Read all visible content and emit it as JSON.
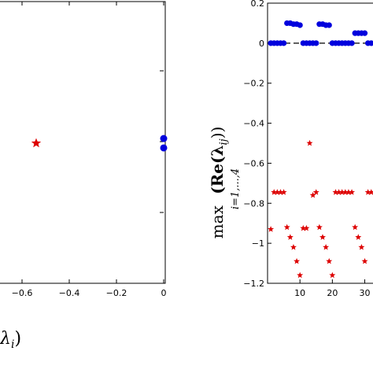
{
  "chart_data": [
    {
      "type": "scatter",
      "xlabel_visible": "λ",
      "xlabel_subscript": "i",
      "xlabel_close": ")",
      "xticks": [
        "−0.6",
        "−0.4",
        "−0.2",
        "0"
      ],
      "xlim": [
        -0.7,
        0.0
      ],
      "ylim": [
        -1.2,
        1.2
      ],
      "series": [
        {
          "marker": "star",
          "color": "#dd0000",
          "points": [
            [
              -0.54,
              0.0
            ]
          ]
        },
        {
          "marker": "circle",
          "color": "#0000dd",
          "points": [
            [
              0.0,
              0.04
            ],
            [
              0.0,
              -0.04
            ]
          ]
        }
      ]
    },
    {
      "type": "scatter",
      "ylabel_operator": "max",
      "ylabel_operator_sub": "i=1,...,4",
      "ylabel_text": "(Re(λ",
      "ylabel_text_sub": "ij",
      "ylabel_text_close": "))",
      "yticks": [
        "0.2",
        "0",
        "−0.2",
        "−0.4",
        "−0.6",
        "−0.8",
        "−1",
        "−1.2"
      ],
      "ytick_values": [
        0.2,
        0,
        -0.2,
        -0.4,
        -0.6,
        -0.8,
        -1,
        -1.2
      ],
      "xticks": [
        "10",
        "20",
        "30"
      ],
      "xtick_values": [
        10,
        20,
        30
      ],
      "xlim": [
        0,
        34
      ],
      "ylim": [
        -1.2,
        0.2
      ],
      "reference_line": {
        "y": 0,
        "style": "dashed",
        "color": "#000000"
      },
      "series": [
        {
          "marker": "circle",
          "color": "#0000dd",
          "x": [
            1,
            2,
            3,
            4,
            5,
            6,
            7,
            8,
            9,
            10,
            11,
            12,
            13,
            14,
            15,
            16,
            17,
            18,
            19,
            20,
            21,
            22,
            23,
            24,
            25,
            26,
            27,
            28,
            29,
            30,
            31,
            32,
            33
          ],
          "y": [
            0,
            0,
            0,
            0,
            0,
            0.1,
            0.1,
            0.095,
            0.095,
            0.09,
            0,
            0,
            0,
            0,
            0,
            0.095,
            0.095,
            0.09,
            0.09,
            0,
            0,
            0,
            0,
            0,
            0,
            0,
            0.05,
            0.05,
            0.05,
            0.05,
            0,
            0,
            0
          ]
        },
        {
          "marker": "star",
          "color": "#dd0000",
          "x": [
            1,
            2,
            3,
            4,
            5,
            6,
            7,
            8,
            9,
            10,
            11,
            12,
            13,
            14,
            15,
            16,
            17,
            18,
            19,
            20,
            21,
            22,
            23,
            24,
            25,
            26,
            27,
            28,
            29,
            30,
            31,
            32,
            33
          ],
          "y": [
            -0.93,
            -0.745,
            -0.745,
            -0.745,
            -0.745,
            -0.92,
            -0.97,
            -1.02,
            -1.09,
            -1.16,
            -0.925,
            -0.925,
            -0.5,
            -0.76,
            -0.745,
            -0.92,
            -0.97,
            -1.02,
            -1.09,
            -1.16,
            -0.745,
            -0.745,
            -0.745,
            -0.745,
            -0.745,
            -0.745,
            -0.92,
            -0.97,
            -1.02,
            -1.09,
            -0.745,
            -0.745,
            -0.745
          ]
        }
      ]
    }
  ]
}
